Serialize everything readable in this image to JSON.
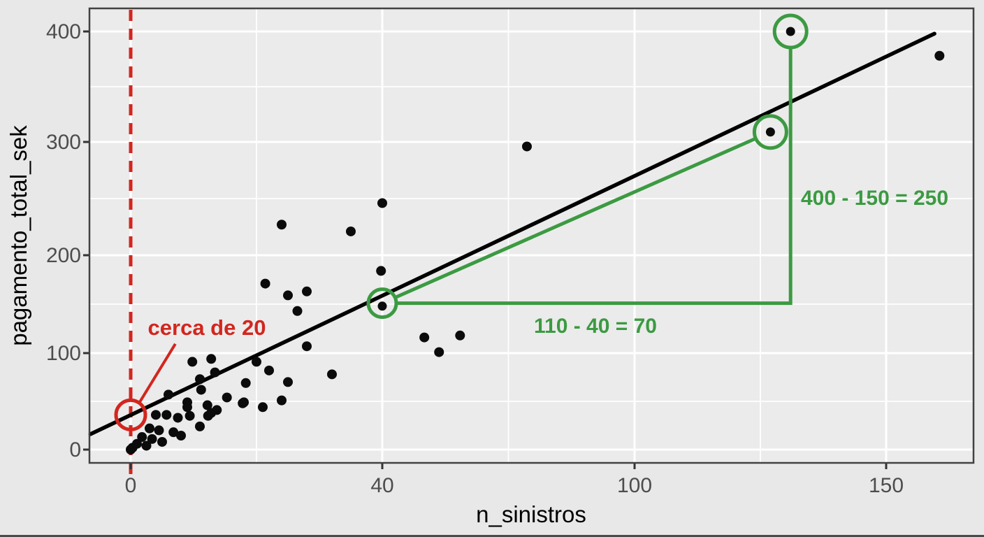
{
  "chart_data": {
    "type": "scatter",
    "title": "",
    "xlabel": "n_sinistros",
    "ylabel": "pagamento_total_sek",
    "x_ticks": [
      "0",
      "40",
      "100",
      "150"
    ],
    "x_tick_values": [
      0,
      40,
      100,
      150
    ],
    "y_ticks": [
      "0",
      "100",
      "200",
      "300",
      "400"
    ],
    "y_tick_values": [
      0,
      100,
      200,
      300,
      400
    ],
    "grid": true,
    "legend": "none",
    "panel_bg": "#ebebeb",
    "outer_bg": "#e8e8e8",
    "gridline_color": "#ffffff",
    "point_color": "#0b0b0b",
    "points": [
      [
        0,
        0
      ],
      [
        0.3,
        2
      ],
      [
        1,
        6
      ],
      [
        2.5,
        4
      ],
      [
        1.8,
        13
      ],
      [
        3.4,
        11
      ],
      [
        5,
        8
      ],
      [
        3,
        22
      ],
      [
        4.5,
        20
      ],
      [
        6.8,
        18
      ],
      [
        8,
        14.5
      ],
      [
        4,
        36
      ],
      [
        5.7,
        36
      ],
      [
        7.5,
        33
      ],
      [
        9.4,
        35
      ],
      [
        12.3,
        35
      ],
      [
        13.7,
        41
      ],
      [
        11,
        24
      ],
      [
        9,
        49
      ],
      [
        9,
        44
      ],
      [
        6,
        57
      ],
      [
        11,
        73
      ],
      [
        11.2,
        62
      ],
      [
        15.3,
        54
      ],
      [
        18,
        49
      ],
      [
        21,
        44
      ],
      [
        18.3,
        69
      ],
      [
        25,
        70
      ],
      [
        24,
        51
      ],
      [
        9.8,
        91
      ],
      [
        12.8,
        94
      ],
      [
        13.4,
        80
      ],
      [
        20,
        91
      ],
      [
        22,
        82
      ],
      [
        26.5,
        143
      ],
      [
        28,
        107
      ],
      [
        25,
        159
      ],
      [
        28,
        163
      ],
      [
        24,
        227
      ],
      [
        35,
        221
      ],
      [
        32,
        78
      ],
      [
        40,
        246
      ],
      [
        39.8,
        184
      ],
      [
        50,
        116
      ],
      [
        58.5,
        118
      ],
      [
        53.5,
        101
      ],
      [
        74.4,
        296
      ],
      [
        160.6,
        378
      ],
      [
        21.4,
        171
      ],
      [
        17.8,
        48
      ],
      [
        12.8,
        38
      ],
      [
        12.2,
        46
      ]
    ],
    "regression_line": {
      "endpoints": [
        [
          -6.4,
          16
        ],
        [
          159.6,
          398
        ]
      ],
      "color": "#000000"
    },
    "annotations": {
      "intercept": {
        "label": "cerca de 20",
        "color": "#d2261e",
        "dashed_vline_x": 0,
        "circle": {
          "cx": 0,
          "cy": 36
        },
        "callout": [
          [
            7.1,
            109.4
          ],
          [
            1.3,
            47.8
          ]
        ]
      },
      "slope": {
        "color": "#3c9a42",
        "run_label": "110 - 40 = 70",
        "rise_label": "400 - 150 = 250",
        "highlighted_points": [
          [
            40,
            148
          ],
          [
            127,
            309
          ],
          [
            131,
            400
          ]
        ],
        "circles": [
          {
            "cx": 40,
            "cy": 151
          },
          {
            "cx": 127,
            "cy": 309
          },
          {
            "cx": 131,
            "cy": 400
          }
        ],
        "triangle_corner": [
          131,
          151
        ]
      }
    }
  }
}
